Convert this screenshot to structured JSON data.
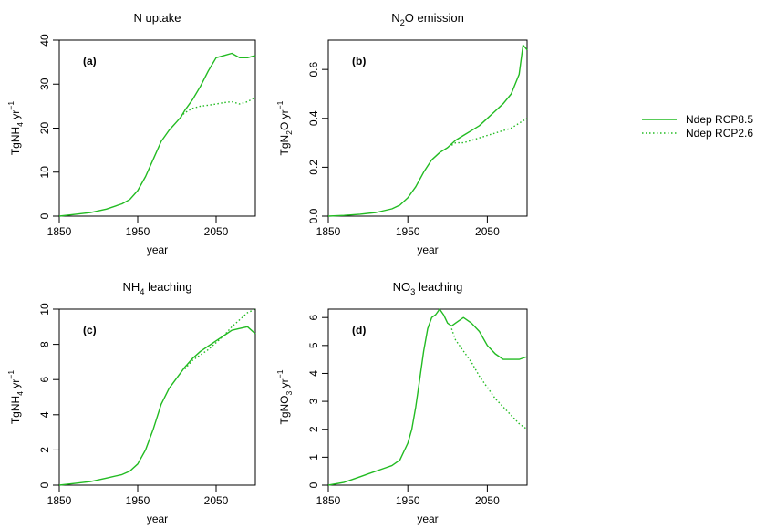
{
  "colors": {
    "series": "#22bb22",
    "axis": "#000000"
  },
  "legend": {
    "placement": "right",
    "entries": [
      {
        "label": "Ndep RCP8.5",
        "style": "solid"
      },
      {
        "label": "Ndep RCP2.6",
        "style": "dotted"
      }
    ]
  },
  "chart_data": [
    {
      "type": "line",
      "title": "N uptake",
      "panel_label": "(a)",
      "xlabel": "year",
      "ylabel": "TgNH4 yr-1",
      "xlim": [
        1850,
        2100
      ],
      "ylim": [
        0,
        40
      ],
      "xticks": [
        "1850",
        "1950",
        "2050"
      ],
      "yticks": [
        "0",
        "10",
        "20",
        "30",
        "40"
      ],
      "series": [
        {
          "name": "Ndep RCP8.5",
          "style": "solid",
          "x": [
            1850,
            1870,
            1890,
            1910,
            1930,
            1940,
            1950,
            1960,
            1970,
            1980,
            1990,
            2000,
            2005,
            2010,
            2020,
            2030,
            2040,
            2050,
            2060,
            2070,
            2080,
            2090,
            2100
          ],
          "y": [
            0,
            0.4,
            0.8,
            1.6,
            2.8,
            3.8,
            5.8,
            9,
            13,
            17,
            19.5,
            21.5,
            22.5,
            24,
            26.5,
            29.5,
            33,
            36,
            36.5,
            37,
            36,
            36,
            36.5
          ]
        },
        {
          "name": "Ndep RCP2.6",
          "style": "dotted",
          "x": [
            2005,
            2010,
            2020,
            2030,
            2040,
            2050,
            2060,
            2070,
            2080,
            2090,
            2100
          ],
          "y": [
            22.5,
            23.5,
            24.5,
            25,
            25.2,
            25.5,
            25.8,
            26,
            25.5,
            26,
            27
          ]
        }
      ]
    },
    {
      "type": "line",
      "title": "N2O emission",
      "panel_label": "(b)",
      "xlabel": "year",
      "ylabel": "TgN2O yr-1",
      "xlim": [
        1850,
        2100
      ],
      "ylim": [
        0,
        0.72
      ],
      "xticks": [
        "1850",
        "1950",
        "2050"
      ],
      "yticks": [
        "0.0",
        "0.2",
        "0.4",
        "0.6"
      ],
      "series": [
        {
          "name": "Ndep RCP8.5",
          "style": "solid",
          "x": [
            1850,
            1870,
            1890,
            1910,
            1930,
            1940,
            1950,
            1960,
            1970,
            1980,
            1990,
            2000,
            2010,
            2020,
            2030,
            2040,
            2050,
            2060,
            2070,
            2080,
            2090,
            2095,
            2100
          ],
          "y": [
            0,
            0.003,
            0.008,
            0.015,
            0.03,
            0.045,
            0.075,
            0.12,
            0.18,
            0.23,
            0.26,
            0.28,
            0.31,
            0.33,
            0.35,
            0.37,
            0.4,
            0.43,
            0.46,
            0.5,
            0.58,
            0.7,
            0.68
          ]
        },
        {
          "name": "Ndep RCP2.6",
          "style": "dotted",
          "x": [
            2005,
            2010,
            2020,
            2030,
            2040,
            2050,
            2060,
            2070,
            2080,
            2090,
            2100
          ],
          "y": [
            0.29,
            0.3,
            0.3,
            0.31,
            0.32,
            0.33,
            0.34,
            0.35,
            0.36,
            0.38,
            0.4
          ]
        }
      ]
    },
    {
      "type": "line",
      "title": "NH4 leaching",
      "panel_label": "(c)",
      "xlabel": "year",
      "ylabel": "TgNH4 yr-1",
      "xlim": [
        1850,
        2100
      ],
      "ylim": [
        0,
        10
      ],
      "xticks": [
        "1850",
        "1950",
        "2050"
      ],
      "yticks": [
        "0",
        "2",
        "4",
        "6",
        "8",
        "10"
      ],
      "series": [
        {
          "name": "Ndep RCP8.5",
          "style": "solid",
          "x": [
            1850,
            1870,
            1890,
            1910,
            1930,
            1940,
            1950,
            1960,
            1970,
            1980,
            1990,
            2000,
            2010,
            2020,
            2030,
            2040,
            2050,
            2060,
            2070,
            2080,
            2090,
            2100
          ],
          "y": [
            0,
            0.1,
            0.2,
            0.4,
            0.6,
            0.8,
            1.2,
            2,
            3.2,
            4.6,
            5.5,
            6.1,
            6.7,
            7.2,
            7.6,
            7.9,
            8.2,
            8.5,
            8.8,
            8.9,
            9,
            8.6
          ]
        },
        {
          "name": "Ndep RCP2.6",
          "style": "dotted",
          "x": [
            2010,
            2020,
            2030,
            2040,
            2050,
            2060,
            2070,
            2080,
            2090,
            2100
          ],
          "y": [
            6.6,
            7.1,
            7.4,
            7.7,
            8.1,
            8.5,
            9,
            9.4,
            9.8,
            10
          ]
        }
      ]
    },
    {
      "type": "line",
      "title": "NO3 leaching",
      "panel_label": "(d)",
      "xlabel": "year",
      "ylabel": "TgNO3 yr-1",
      "xlim": [
        1850,
        2100
      ],
      "ylim": [
        0,
        6.3
      ],
      "xticks": [
        "1850",
        "1950",
        "2050"
      ],
      "yticks": [
        "0",
        "1",
        "2",
        "3",
        "4",
        "5",
        "6"
      ],
      "series": [
        {
          "name": "Ndep RCP8.5",
          "style": "solid",
          "x": [
            1850,
            1870,
            1890,
            1900,
            1920,
            1930,
            1940,
            1950,
            1955,
            1960,
            1965,
            1970,
            1975,
            1980,
            1985,
            1990,
            1995,
            2000,
            2005,
            2010,
            2020,
            2030,
            2040,
            2050,
            2060,
            2070,
            2080,
            2090,
            2100
          ],
          "y": [
            0,
            0.1,
            0.3,
            0.4,
            0.6,
            0.7,
            0.9,
            1.5,
            2,
            2.8,
            3.8,
            4.8,
            5.6,
            6,
            6.1,
            6.3,
            6.1,
            5.8,
            5.7,
            5.8,
            6,
            5.8,
            5.5,
            5,
            4.7,
            4.5,
            4.5,
            4.5,
            4.6
          ]
        },
        {
          "name": "Ndep RCP2.6",
          "style": "dotted",
          "x": [
            2005,
            2010,
            2020,
            2030,
            2040,
            2050,
            2060,
            2070,
            2080,
            2090,
            2100
          ],
          "y": [
            5.6,
            5.2,
            4.8,
            4.4,
            3.9,
            3.5,
            3.1,
            2.8,
            2.5,
            2.2,
            2
          ]
        }
      ]
    }
  ]
}
